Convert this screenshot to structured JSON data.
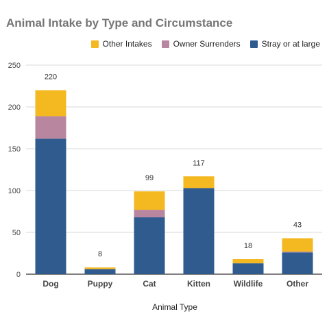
{
  "chart_data": {
    "type": "bar",
    "stacked": true,
    "title": "Animal Intake by Type and Circumstance",
    "xlabel": "Animal Type",
    "ylabel": "",
    "categories": [
      "Dog",
      "Puppy",
      "Cat",
      "Kitten",
      "Wildlife",
      "Other"
    ],
    "series": [
      {
        "name": "Stray or at large",
        "color": "#2f5b8f",
        "values": [
          162,
          6,
          68,
          103,
          13,
          26
        ]
      },
      {
        "name": "Owner Surrenders",
        "color": "#b8879f",
        "values": [
          27,
          0,
          9,
          0,
          0,
          1
        ]
      },
      {
        "name": "Other Intakes",
        "color": "#f4b820",
        "values": [
          31,
          2,
          22,
          14,
          5,
          16
        ]
      }
    ],
    "totals": [
      "220",
      "8",
      "99",
      "117",
      "18",
      "43"
    ],
    "yticks": [
      "0",
      "50",
      "100",
      "150",
      "200",
      "250"
    ],
    "ylim": [
      0,
      250
    ],
    "legend_order": [
      "Other Intakes",
      "Owner Surrenders",
      "Stray or at large"
    ],
    "legend_position": "top-right",
    "grid": true
  }
}
